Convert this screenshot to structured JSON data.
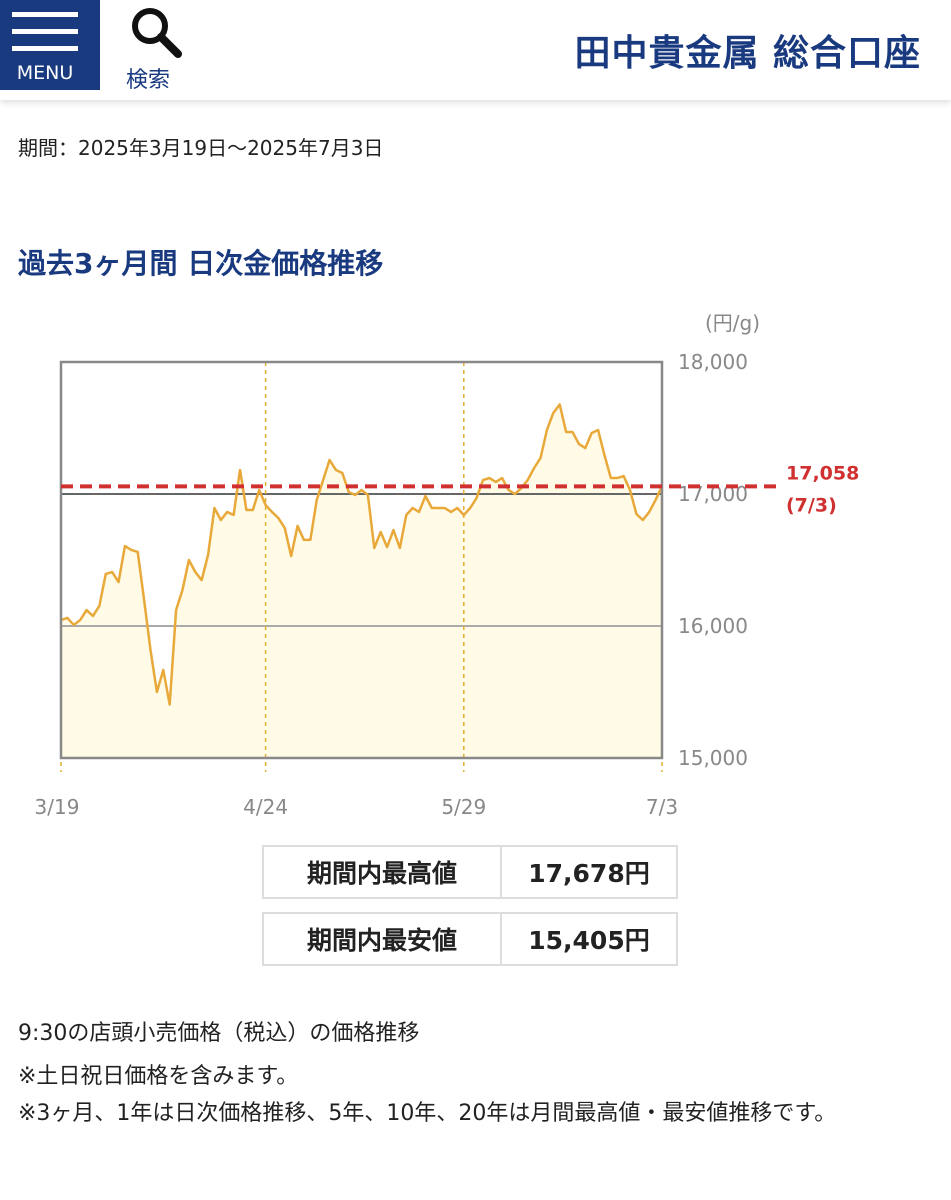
{
  "header": {
    "menu": "MENU",
    "search": "検索",
    "title": "田中貴金属 総合口座"
  },
  "period": "期間：2025年3月19日〜2025年7月3日",
  "section_title": "過去3ヶ月間 日次金価格推移",
  "chart_data": {
    "type": "line",
    "y_label": "(円/g)",
    "categories": [
      "3/19",
      null,
      null,
      null,
      null,
      null,
      null,
      null,
      null,
      null,
      null,
      null,
      null,
      null,
      null,
      null,
      null,
      null,
      null,
      null,
      null,
      null,
      null,
      null,
      null,
      null,
      null,
      null,
      null,
      null,
      null,
      null,
      "4/24",
      null,
      null,
      null,
      null,
      null,
      null,
      null,
      null,
      null,
      null,
      null,
      null,
      null,
      null,
      null,
      null,
      null,
      null,
      null,
      null,
      null,
      null,
      null,
      null,
      null,
      null,
      null,
      null,
      null,
      null,
      "5/29",
      null,
      null,
      null,
      null,
      null,
      null,
      null,
      null,
      null,
      null,
      null,
      null,
      null,
      null,
      null,
      null,
      null,
      null,
      null,
      null,
      null,
      null,
      null,
      null,
      null,
      null,
      null,
      null,
      null,
      null,
      "7/3"
    ],
    "values": [
      16045,
      16061,
      16008,
      16045,
      16121,
      16076,
      16152,
      16394,
      16409,
      16333,
      16606,
      16576,
      16561,
      16197,
      15818,
      15500,
      15667,
      15405,
      16121,
      16273,
      16500,
      16409,
      16348,
      16538,
      16894,
      16803,
      16864,
      16841,
      17182,
      16879,
      16879,
      17030,
      16917,
      16864,
      16818,
      16742,
      16530,
      16758,
      16652,
      16652,
      16955,
      17106,
      17258,
      17182,
      17159,
      17015,
      16992,
      17030,
      16992,
      16591,
      16712,
      16598,
      16727,
      16591,
      16841,
      16894,
      16864,
      16985,
      16894,
      16894,
      16894,
      16864,
      16894,
      16841,
      16894,
      16970,
      17106,
      17121,
      17091,
      17121,
      17030,
      17000,
      17045,
      17106,
      17197,
      17273,
      17485,
      17614,
      17678,
      17470,
      17470,
      17379,
      17348,
      17462,
      17485,
      17295,
      17121,
      17121,
      17136,
      17030,
      16848,
      16803,
      16864,
      16955,
      17058
    ],
    "color": "#e8a93a",
    "area_color": "#fffbe6",
    "ylim": [
      15000,
      18000
    ],
    "yticks": [
      {
        "value": 15000,
        "label": "15,000"
      },
      {
        "value": 16000,
        "label": "16,000"
      },
      {
        "value": 17000,
        "label": "17,000"
      },
      {
        "value": 18000,
        "label": "18,000"
      }
    ],
    "grid": true,
    "reference": {
      "value": 17058,
      "label": "17,058",
      "date": "(7/3)",
      "color": "#d03030"
    }
  },
  "stats": [
    [
      "期間内最高値",
      "17,678円"
    ],
    [
      "期間内最安値",
      "15,405円"
    ]
  ],
  "notes": [
    "9:30の店頭小売価格（税込）の価格推移",
    "※土日祝日価格を含みます。",
    "※3ヶ月、1年は日次価格推移、5年、10年、20年は月間最高値・最安値推移です。"
  ]
}
